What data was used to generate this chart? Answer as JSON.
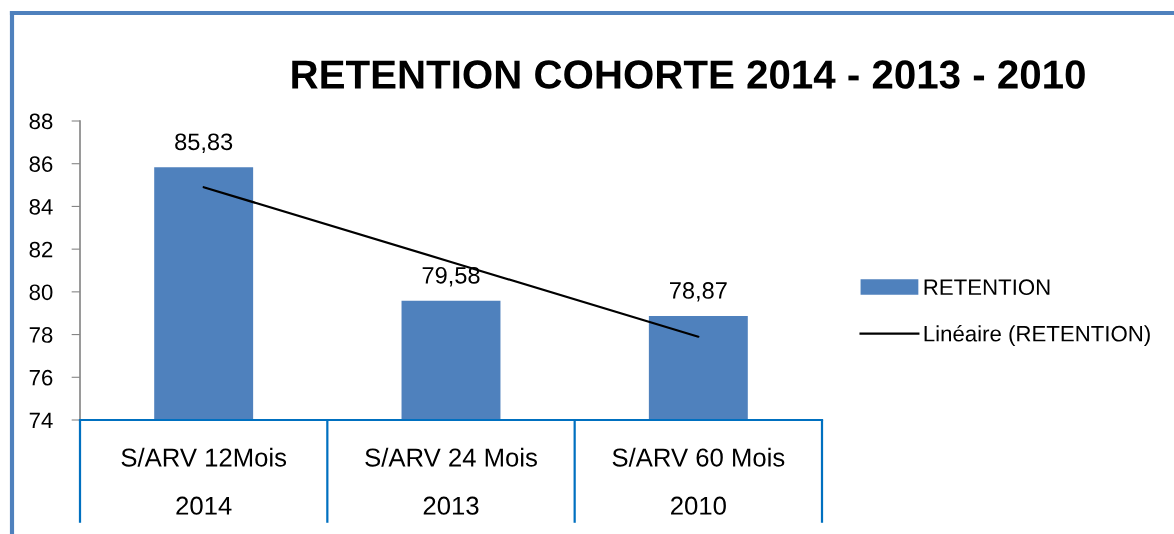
{
  "chart_data": {
    "type": "bar",
    "title": "RETENTION COHORTE 2014 - 2013 - 2010",
    "categories": [
      "S/ARV 12Mois\n2014",
      "S/ARV 24 Mois\n2013",
      "S/ARV 60 Mois\n2010"
    ],
    "series": [
      {
        "name": "RETENTION",
        "color": "#4f81bd",
        "values": [
          85.83,
          79.58,
          78.87
        ],
        "value_labels": [
          "85,83",
          "79,58",
          "78,87"
        ]
      },
      {
        "name": "Linéaire (RETENTION)",
        "type": "line",
        "color": "#000000",
        "values": [
          84.9,
          81.4,
          77.9
        ]
      }
    ],
    "ylim": [
      74,
      88
    ],
    "yticks": [
      74,
      76,
      78,
      80,
      82,
      84,
      86,
      88
    ],
    "grid": false,
    "legend": "right"
  }
}
